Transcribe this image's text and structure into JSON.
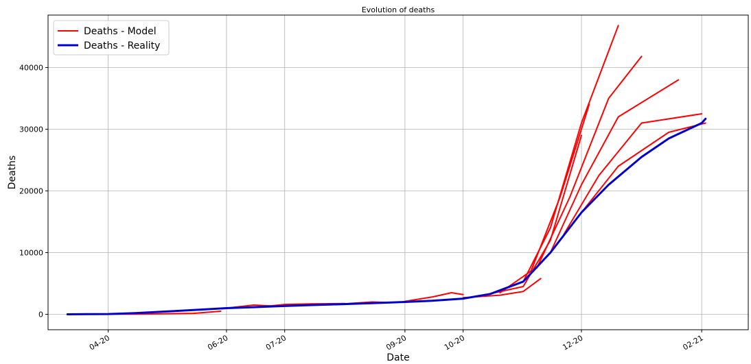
{
  "chart_data": {
    "type": "line",
    "title": "Evolution of deaths",
    "xlabel": "Date",
    "ylabel": "Deaths",
    "x_range": [
      "2020-03-01",
      "2021-02-25"
    ],
    "ylim": [
      -2500,
      48500
    ],
    "x_ticks": [
      {
        "date": "2020-04-01",
        "label": "04-20"
      },
      {
        "date": "2020-06-01",
        "label": "06-20"
      },
      {
        "date": "2020-07-01",
        "label": "07-20"
      },
      {
        "date": "2020-09-01",
        "label": "09-20"
      },
      {
        "date": "2020-10-01",
        "label": "10-20"
      },
      {
        "date": "2020-12-01",
        "label": "12-20"
      },
      {
        "date": "2021-02-01",
        "label": "02-21"
      }
    ],
    "y_ticks": [
      0,
      10000,
      20000,
      30000,
      40000
    ],
    "grid": true,
    "legend_position": "top-left",
    "colors": {
      "model": "#ff0000",
      "reality": "#0000cc"
    },
    "series": [
      {
        "name": "Deaths - Reality",
        "color": "#0000cc",
        "points": [
          [
            "2020-03-11",
            0
          ],
          [
            "2020-04-01",
            40
          ],
          [
            "2020-04-15",
            200
          ],
          [
            "2020-05-01",
            450
          ],
          [
            "2020-05-15",
            700
          ],
          [
            "2020-06-01",
            1000
          ],
          [
            "2020-06-15",
            1150
          ],
          [
            "2020-07-01",
            1350
          ],
          [
            "2020-07-15",
            1500
          ],
          [
            "2020-08-01",
            1650
          ],
          [
            "2020-08-15",
            1800
          ],
          [
            "2020-09-01",
            2000
          ],
          [
            "2020-09-15",
            2200
          ],
          [
            "2020-10-01",
            2550
          ],
          [
            "2020-10-15",
            3300
          ],
          [
            "2020-11-01",
            5300
          ],
          [
            "2020-11-15",
            10000
          ],
          [
            "2020-12-01",
            16500
          ],
          [
            "2020-12-15",
            21000
          ],
          [
            "2021-01-01",
            25500
          ],
          [
            "2021-01-15",
            28500
          ],
          [
            "2021-02-01",
            31000
          ],
          [
            "2021-02-03",
            31700
          ]
        ]
      },
      {
        "name": "Deaths - Model",
        "color": "#ff0000",
        "note_runs": "multiple forecast runs, one per start date",
        "runs": [
          {
            "points": [
              [
                "2020-03-11",
                0
              ],
              [
                "2020-04-15",
                30
              ],
              [
                "2020-05-15",
                150
              ],
              [
                "2020-05-29",
                500
              ]
            ]
          },
          {
            "points": [
              [
                "2020-06-01",
                1000
              ],
              [
                "2020-06-15",
                1500
              ],
              [
                "2020-06-25",
                1350
              ],
              [
                "2020-07-05",
                1350
              ]
            ]
          },
          {
            "points": [
              [
                "2020-06-20",
                1250
              ],
              [
                "2020-07-01",
                1600
              ],
              [
                "2020-07-15",
                1700
              ],
              [
                "2020-08-01",
                1750
              ]
            ]
          },
          {
            "points": [
              [
                "2020-08-01",
                1700
              ],
              [
                "2020-08-15",
                2000
              ],
              [
                "2020-08-25",
                1900
              ],
              [
                "2020-09-05",
                2050
              ]
            ]
          },
          {
            "points": [
              [
                "2020-09-01",
                2100
              ],
              [
                "2020-09-15",
                2800
              ],
              [
                "2020-09-25",
                3500
              ],
              [
                "2020-10-01",
                3200
              ]
            ]
          },
          {
            "points": [
              [
                "2020-10-01",
                2700
              ],
              [
                "2020-10-20",
                3100
              ],
              [
                "2020-11-01",
                3700
              ],
              [
                "2020-11-10",
                5800
              ]
            ]
          },
          {
            "points": [
              [
                "2020-10-10",
                3000
              ],
              [
                "2020-11-01",
                4500
              ],
              [
                "2020-11-15",
                12000
              ],
              [
                "2020-12-01",
                29000
              ]
            ]
          },
          {
            "points": [
              [
                "2020-10-20",
                3500
              ],
              [
                "2020-11-05",
                7000
              ],
              [
                "2020-11-20",
                19000
              ],
              [
                "2020-12-05",
                34000
              ]
            ]
          },
          {
            "points": [
              [
                "2020-11-01",
                5300
              ],
              [
                "2020-11-15",
                14000
              ],
              [
                "2020-12-01",
                31000
              ],
              [
                "2020-12-20",
                46800
              ]
            ]
          },
          {
            "points": [
              [
                "2020-11-08",
                7500
              ],
              [
                "2020-11-25",
                19000
              ],
              [
                "2020-12-15",
                35000
              ],
              [
                "2021-01-01",
                41800
              ]
            ]
          },
          {
            "points": [
              [
                "2020-11-15",
                10000
              ],
              [
                "2020-12-01",
                21000
              ],
              [
                "2020-12-20",
                32000
              ],
              [
                "2021-01-20",
                38000
              ]
            ]
          },
          {
            "points": [
              [
                "2020-11-22",
                13000
              ],
              [
                "2020-12-10",
                22500
              ],
              [
                "2021-01-01",
                31000
              ],
              [
                "2021-02-01",
                32500
              ]
            ]
          },
          {
            "points": [
              [
                "2020-12-01",
                16500
              ],
              [
                "2020-12-20",
                24000
              ],
              [
                "2021-01-15",
                29500
              ],
              [
                "2021-02-03",
                31000
              ]
            ]
          }
        ]
      }
    ]
  }
}
